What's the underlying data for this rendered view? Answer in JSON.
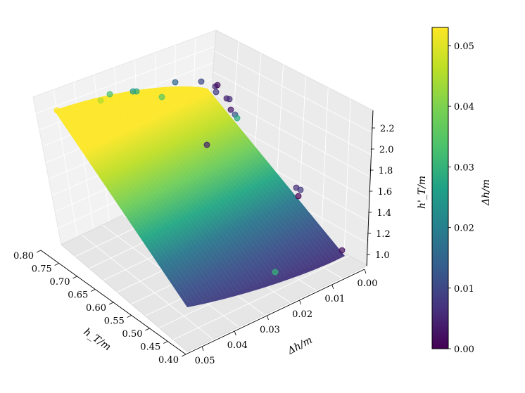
{
  "chart_data": {
    "type": "surface3d",
    "title": "",
    "xlabel": "h_T/m",
    "ylabel": "Δh/m",
    "zlabel": "h'_T/m",
    "colorbar_label": "Δh/m",
    "colormap": "viridis",
    "xticks": [
      "0.40",
      "0.45",
      "0.50",
      "0.55",
      "0.60",
      "0.65",
      "0.70",
      "0.75",
      "0.80"
    ],
    "yticks": [
      "0.00",
      "0.01",
      "0.02",
      "0.03",
      "0.04",
      "0.05"
    ],
    "zticks": [
      "1.0",
      "1.2",
      "1.4",
      "1.6",
      "1.8",
      "2.0",
      "2.2"
    ],
    "colorbar_ticks": [
      "0.00",
      "0.01",
      "0.02",
      "0.03",
      "0.04",
      "0.05"
    ],
    "xlim": [
      0.4,
      0.8
    ],
    "ylim": [
      0.0,
      0.055
    ],
    "zlim": [
      0.95,
      2.3
    ],
    "clim": [
      0.0,
      0.053
    ],
    "surface_corners": [
      {
        "h_T": 0.45,
        "dh": 0.0,
        "hT_prime": 0.98
      },
      {
        "h_T": 0.8,
        "dh": 0.0,
        "hT_prime": 2.2
      },
      {
        "h_T": 0.8,
        "dh": 0.053,
        "hT_prime": 2.2
      },
      {
        "h_T": 0.45,
        "dh": 0.053,
        "hT_prime": 0.98
      }
    ],
    "points": [
      {
        "h_T": 0.8,
        "dh": 0.053,
        "hT_prime": 2.2
      },
      {
        "h_T": 0.79,
        "dh": 0.045,
        "hT_prime": 2.21
      },
      {
        "h_T": 0.78,
        "dh": 0.033,
        "hT_prime": 2.22
      },
      {
        "h_T": 0.76,
        "dh": 0.025,
        "hT_prime": 2.23
      },
      {
        "h_T": 0.75,
        "dh": 0.028,
        "hT_prime": 2.24
      },
      {
        "h_T": 0.72,
        "dh": 0.035,
        "hT_prime": 2.25
      },
      {
        "h_T": 0.7,
        "dh": 0.015,
        "hT_prime": 2.26
      },
      {
        "h_T": 0.68,
        "dh": 0.01,
        "hT_prime": 2.27
      },
      {
        "h_T": 0.66,
        "dh": 0.005,
        "hT_prime": 2.27
      },
      {
        "h_T": 0.65,
        "dh": 0.002,
        "hT_prime": 2.26
      },
      {
        "h_T": 0.64,
        "dh": 0.008,
        "hT_prime": 2.24
      },
      {
        "h_T": 0.63,
        "dh": 0.004,
        "hT_prime": 2.2
      },
      {
        "h_T": 0.62,
        "dh": 0.006,
        "hT_prime": 2.17
      },
      {
        "h_T": 0.61,
        "dh": 0.003,
        "hT_prime": 2.15
      },
      {
        "h_T": 0.6,
        "dh": 0.012,
        "hT_prime": 2.1
      },
      {
        "h_T": 0.58,
        "dh": 0.028,
        "hT_prime": 1.9
      },
      {
        "h_T": 0.5,
        "dh": 0.004,
        "hT_prime": 1.4
      },
      {
        "h_T": 0.49,
        "dh": 0.006,
        "hT_prime": 1.38
      },
      {
        "h_T": 0.48,
        "dh": 0.008,
        "hT_prime": 1.36
      },
      {
        "h_T": 0.45,
        "dh": 0.0,
        "hT_prime": 0.98
      },
      {
        "h_T": 0.445,
        "dh": 0.002,
        "hT_prime": 0.97
      },
      {
        "h_T": 0.45,
        "dh": 0.03,
        "hT_prime": 0.97
      }
    ]
  }
}
